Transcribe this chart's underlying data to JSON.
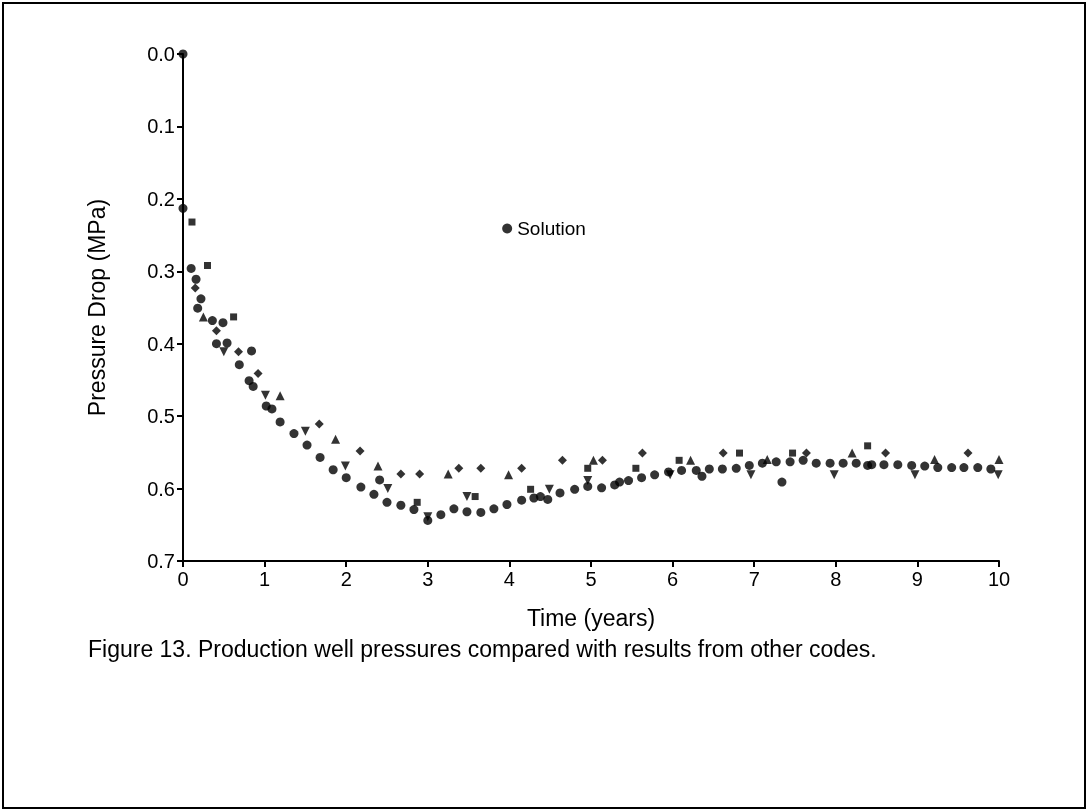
{
  "chart_data": {
    "type": "scatter",
    "xlabel": "Time (years)",
    "ylabel": "Pressure Drop (MPa)",
    "xlim": [
      0,
      10
    ],
    "xticks": [
      0,
      1,
      2,
      3,
      4,
      5,
      6,
      7,
      8,
      9,
      10
    ],
    "ylim": [
      0.7,
      0.0
    ],
    "yticks": [
      {
        "value": 0.0,
        "label": "0.0"
      },
      {
        "value": 0.1,
        "label": "0.1"
      },
      {
        "value": 0.2,
        "label": "0.2"
      },
      {
        "value": 0.3,
        "label": "0.3"
      },
      {
        "value": 0.4,
        "label": "0.4"
      },
      {
        "value": 0.5,
        "label": "0.5"
      },
      {
        "value": 0.6,
        "label": "0.6"
      },
      {
        "value": 0.7,
        "label": "0.7"
      }
    ],
    "grid": false,
    "legend": "top",
    "annotations": [
      "Figure 13. Production well pressures compared with results from other codes."
    ],
    "series": [
      {
        "name": "Solution",
        "color": "#000000",
        "marker": "circle",
        "x": [
          0,
          0,
          0.1,
          0.16,
          0.18,
          0.22,
          0.36,
          0.41,
          0.49,
          0.54,
          0.69,
          0.81,
          0.84,
          0.86,
          1.02,
          1.09,
          1.19,
          1.36,
          1.52,
          1.68,
          1.84,
          2.0,
          2.18,
          2.34,
          2.41,
          2.5,
          2.67,
          2.83,
          3.0,
          3.16,
          3.32,
          3.48,
          3.65,
          3.81,
          3.97,
          4.15,
          4.3,
          4.38,
          4.47,
          4.62,
          4.8,
          4.96,
          5.13,
          5.29,
          5.35,
          5.46,
          5.62,
          5.78,
          5.95,
          6.11,
          6.29,
          6.36,
          6.45,
          6.61,
          6.78,
          6.94,
          7.1,
          7.27,
          7.34,
          7.44,
          7.6,
          7.76,
          7.93,
          8.09,
          8.25,
          8.39,
          8.44,
          8.59,
          8.76,
          8.93,
          9.09,
          9.25,
          9.42,
          9.57,
          9.74,
          9.9
        ],
        "values": [
          0.0,
          0.213,
          0.296,
          0.311,
          0.351,
          0.338,
          0.368,
          0.4,
          0.371,
          0.399,
          0.429,
          0.451,
          0.41,
          0.459,
          0.486,
          0.49,
          0.508,
          0.524,
          0.54,
          0.557,
          0.574,
          0.585,
          0.598,
          0.608,
          0.588,
          0.619,
          0.623,
          0.629,
          0.644,
          0.636,
          0.628,
          0.632,
          0.633,
          0.628,
          0.622,
          0.616,
          0.613,
          0.611,
          0.615,
          0.606,
          0.601,
          0.597,
          0.599,
          0.595,
          0.591,
          0.589,
          0.585,
          0.581,
          0.577,
          0.575,
          0.575,
          0.583,
          0.573,
          0.573,
          0.572,
          0.568,
          0.565,
          0.563,
          0.591,
          0.563,
          0.561,
          0.565,
          0.565,
          0.565,
          0.565,
          0.568,
          0.567,
          0.567,
          0.567,
          0.568,
          0.569,
          0.571,
          0.571,
          0.571,
          0.571,
          0.573
        ]
      },
      {
        "color": "#000000",
        "marker": "square",
        "x": [
          0.11,
          0.3,
          0.62,
          2.87,
          3.58,
          4.26,
          4.96,
          5.55,
          6.08,
          6.82,
          7.47,
          8.39
        ],
        "values": [
          0.232,
          0.292,
          0.363,
          0.619,
          0.611,
          0.601,
          0.572,
          0.572,
          0.561,
          0.551,
          0.551,
          0.541
        ]
      },
      {
        "color": "#000000",
        "marker": "diamond",
        "x": [
          0.15,
          0.41,
          0.68,
          0.92,
          1.67,
          2.17,
          2.67,
          2.9,
          3.38,
          3.65,
          4.15,
          4.65,
          5.14,
          5.63,
          6.62,
          7.64,
          8.61,
          9.62
        ],
        "values": [
          0.323,
          0.382,
          0.411,
          0.441,
          0.511,
          0.548,
          0.58,
          0.58,
          0.572,
          0.572,
          0.572,
          0.561,
          0.561,
          0.551,
          0.551,
          0.551,
          0.551,
          0.551
        ]
      },
      {
        "color": "#000000",
        "marker": "triangle",
        "x": [
          0.25,
          1.19,
          1.87,
          2.39,
          3.25,
          3.99,
          5.03,
          6.22,
          7.16,
          8.2,
          9.21,
          10.0
        ],
        "values": [
          0.363,
          0.472,
          0.532,
          0.569,
          0.58,
          0.581,
          0.561,
          0.561,
          0.56,
          0.551,
          0.56,
          0.56
        ]
      },
      {
        "color": "#000000",
        "marker": "triangle-down",
        "x": [
          0.5,
          1.01,
          1.5,
          1.99,
          2.51,
          3.0,
          3.48,
          4.49,
          4.96,
          5.97,
          6.96,
          7.98,
          8.97,
          9.99
        ],
        "values": [
          0.411,
          0.471,
          0.521,
          0.569,
          0.6,
          0.639,
          0.611,
          0.601,
          0.589,
          0.581,
          0.581,
          0.581,
          0.581,
          0.581
        ]
      }
    ]
  }
}
